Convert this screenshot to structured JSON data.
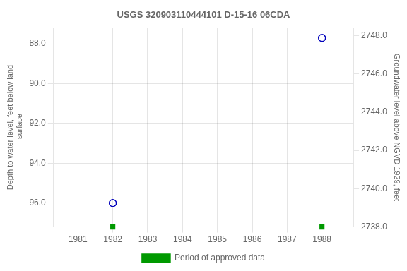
{
  "chart_data": {
    "type": "scatter",
    "title": "USGS 320903110444101 D-15-16 06CDA",
    "ylabel": "Depth to water level, feet below land\n surface",
    "y2label": "Groundwater level above NGVD 1929, feet",
    "x": [
      1982.0,
      1988.0
    ],
    "series": [
      {
        "color": "#0000bb",
        "marker": "circle",
        "values": [
          96.0,
          87.7
        ]
      },
      {
        "name": "Period of approved data",
        "color": "#009900",
        "marker": "square",
        "values": [
          97.2,
          97.2
        ]
      }
    ],
    "xlim": [
      1980.3,
      1988.9
    ],
    "xticks": [
      1981,
      1982,
      1983,
      1984,
      1985,
      1986,
      1987,
      1988
    ],
    "ylim": [
      97.2,
      87.2
    ],
    "yticks": [
      {
        "value": 88.0,
        "label": "88.0"
      },
      {
        "value": 90.0,
        "label": "90.0"
      },
      {
        "value": 92.0,
        "label": "92.0"
      },
      {
        "value": 94.0,
        "label": "94.0"
      },
      {
        "value": 96.0,
        "label": "96.0"
      }
    ],
    "y2lim": [
      2738.0,
      2748.4
    ],
    "y2ticks": [
      {
        "value": 2738.0,
        "label": "2738.0"
      },
      {
        "value": 2740.0,
        "label": "2740.0"
      },
      {
        "value": 2742.0,
        "label": "2742.0"
      },
      {
        "value": 2744.0,
        "label": "2744.0"
      },
      {
        "value": 2746.0,
        "label": "2746.0"
      },
      {
        "value": 2748.0,
        "label": "2748.0"
      }
    ],
    "grid": true,
    "legend": "bottom"
  }
}
